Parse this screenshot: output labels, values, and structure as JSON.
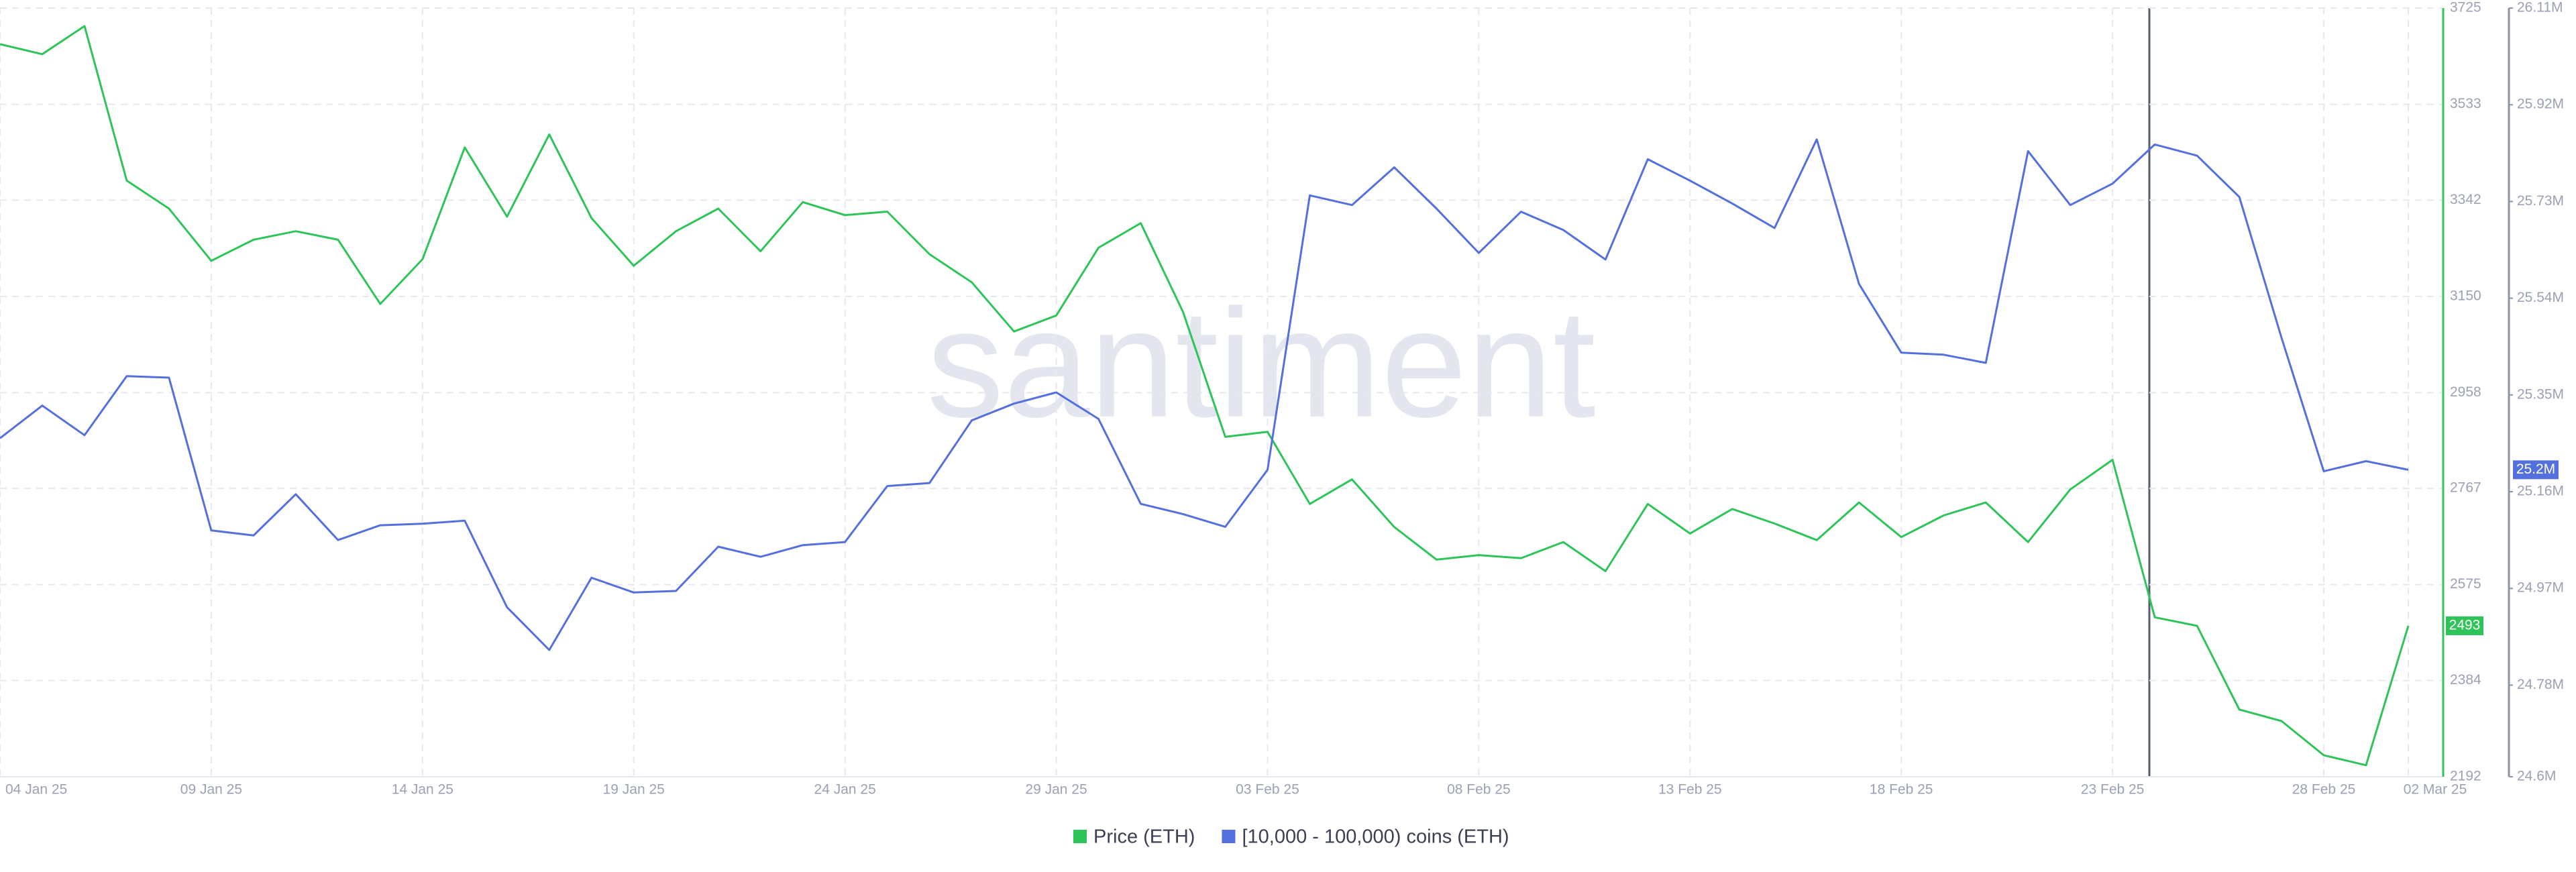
{
  "chart_data": {
    "type": "line",
    "watermark": "santiment",
    "x": [
      "2025-01-04",
      "2025-01-05",
      "2025-01-06",
      "2025-01-07",
      "2025-01-08",
      "2025-01-09",
      "2025-01-10",
      "2025-01-11",
      "2025-01-12",
      "2025-01-13",
      "2025-01-14",
      "2025-01-15",
      "2025-01-16",
      "2025-01-17",
      "2025-01-18",
      "2025-01-19",
      "2025-01-20",
      "2025-01-21",
      "2025-01-22",
      "2025-01-23",
      "2025-01-24",
      "2025-01-25",
      "2025-01-26",
      "2025-01-27",
      "2025-01-28",
      "2025-01-29",
      "2025-01-30",
      "2025-01-31",
      "2025-02-01",
      "2025-02-02",
      "2025-02-03",
      "2025-02-04",
      "2025-02-05",
      "2025-02-06",
      "2025-02-07",
      "2025-02-08",
      "2025-02-09",
      "2025-02-10",
      "2025-02-11",
      "2025-02-12",
      "2025-02-13",
      "2025-02-14",
      "2025-02-15",
      "2025-02-16",
      "2025-02-17",
      "2025-02-18",
      "2025-02-19",
      "2025-02-20",
      "2025-02-21",
      "2025-02-22",
      "2025-02-23",
      "2025-02-24",
      "2025-02-25",
      "2025-02-26",
      "2025-02-27",
      "2025-02-28",
      "2025-03-01",
      "2025-03-02"
    ],
    "xlim": [
      "2025-01-04",
      "2025-03-02"
    ],
    "xticks": [
      {
        "value": "2025-01-04",
        "label": "04 Jan 25"
      },
      {
        "value": "2025-01-09",
        "label": "09 Jan 25"
      },
      {
        "value": "2025-01-14",
        "label": "14 Jan 25"
      },
      {
        "value": "2025-01-19",
        "label": "19 Jan 25"
      },
      {
        "value": "2025-01-24",
        "label": "24 Jan 25"
      },
      {
        "value": "2025-01-29",
        "label": "29 Jan 25"
      },
      {
        "value": "2025-02-03",
        "label": "03 Feb 25"
      },
      {
        "value": "2025-02-08",
        "label": "08 Feb 25"
      },
      {
        "value": "2025-02-13",
        "label": "13 Feb 25"
      },
      {
        "value": "2025-02-18",
        "label": "18 Feb 25"
      },
      {
        "value": "2025-02-23",
        "label": "23 Feb 25"
      },
      {
        "value": "2025-02-28",
        "label": "28 Feb 25"
      },
      {
        "value": "2025-03-02",
        "label": "02 Mar 25"
      }
    ],
    "ylim": [
      2192,
      3725
    ],
    "yticks": [
      2192,
      2384,
      2575,
      2767,
      2958,
      3150,
      3342,
      3533,
      3725
    ],
    "y2lim": [
      24600000,
      26110000
    ],
    "y2ticks": [
      {
        "value": 24600000,
        "label": "24.6M"
      },
      {
        "value": 24780000,
        "label": "24.78M"
      },
      {
        "value": 24970000,
        "label": "24.97M"
      },
      {
        "value": 25160000,
        "label": "25.16M"
      },
      {
        "value": 25350000,
        "label": "25.35M"
      },
      {
        "value": 25540000,
        "label": "25.54M"
      },
      {
        "value": 25730000,
        "label": "25.73M"
      },
      {
        "value": 25920000,
        "label": "25.92M"
      },
      {
        "value": 26110000,
        "label": "26.11M"
      }
    ],
    "grid": true,
    "series": [
      {
        "name": "Price (ETH)",
        "color": "#2fc45a",
        "values": [
          3653,
          3633,
          3689,
          3381,
          3325,
          3221,
          3263,
          3280,
          3263,
          3135,
          3224,
          3447,
          3309,
          3473,
          3306,
          3211,
          3280,
          3325,
          3240,
          3338,
          3312,
          3319,
          3234,
          3178,
          3080,
          3112,
          3247,
          3296,
          3119,
          2870,
          2880,
          2736,
          2785,
          2690,
          2625,
          2634,
          2628,
          2660,
          2602,
          2736,
          2677,
          2726,
          2697,
          2664,
          2739,
          2670,
          2713,
          2739,
          2660,
          2765,
          2824,
          2510,
          2493,
          2326,
          2303,
          2235,
          2215,
          2493
        ]
      },
      {
        "name": "[10,000 - 100,000) coins (ETH)",
        "color": "#5470dd",
        "axis": "y2",
        "values": [
          25265000,
          25329000,
          25271000,
          25387000,
          25384000,
          25084000,
          25074000,
          25155000,
          25065000,
          25094000,
          25097000,
          25103000,
          24933000,
          24849000,
          24991000,
          24962000,
          24965000,
          25052000,
          25032000,
          25055000,
          25061000,
          25171000,
          25177000,
          25300000,
          25333000,
          25355000,
          25303000,
          25136000,
          25116000,
          25091000,
          25203000,
          25742000,
          25723000,
          25797000,
          25716000,
          25629000,
          25710000,
          25674000,
          25616000,
          25813000,
          25771000,
          25726000,
          25678000,
          25852000,
          25568000,
          25433000,
          25429000,
          25413000,
          25829000,
          25723000,
          25765000,
          25842000,
          25820000,
          25739000,
          25462000,
          25200000,
          25220000,
          25203000
        ],
        "value_labels": [
          null,
          null,
          null,
          null,
          null,
          null,
          null,
          null,
          null,
          null,
          null,
          null,
          null,
          null,
          null,
          null,
          null,
          null,
          null,
          null,
          null,
          null,
          null,
          null,
          null,
          null,
          null,
          null,
          null,
          null,
          null,
          null,
          null,
          null,
          null,
          null,
          null,
          null,
          null,
          null,
          null,
          null,
          null,
          null,
          null,
          null,
          null,
          null,
          null,
          null,
          null,
          null,
          null,
          null,
          null,
          null,
          null,
          "25.2M"
        ]
      }
    ]
  }
}
